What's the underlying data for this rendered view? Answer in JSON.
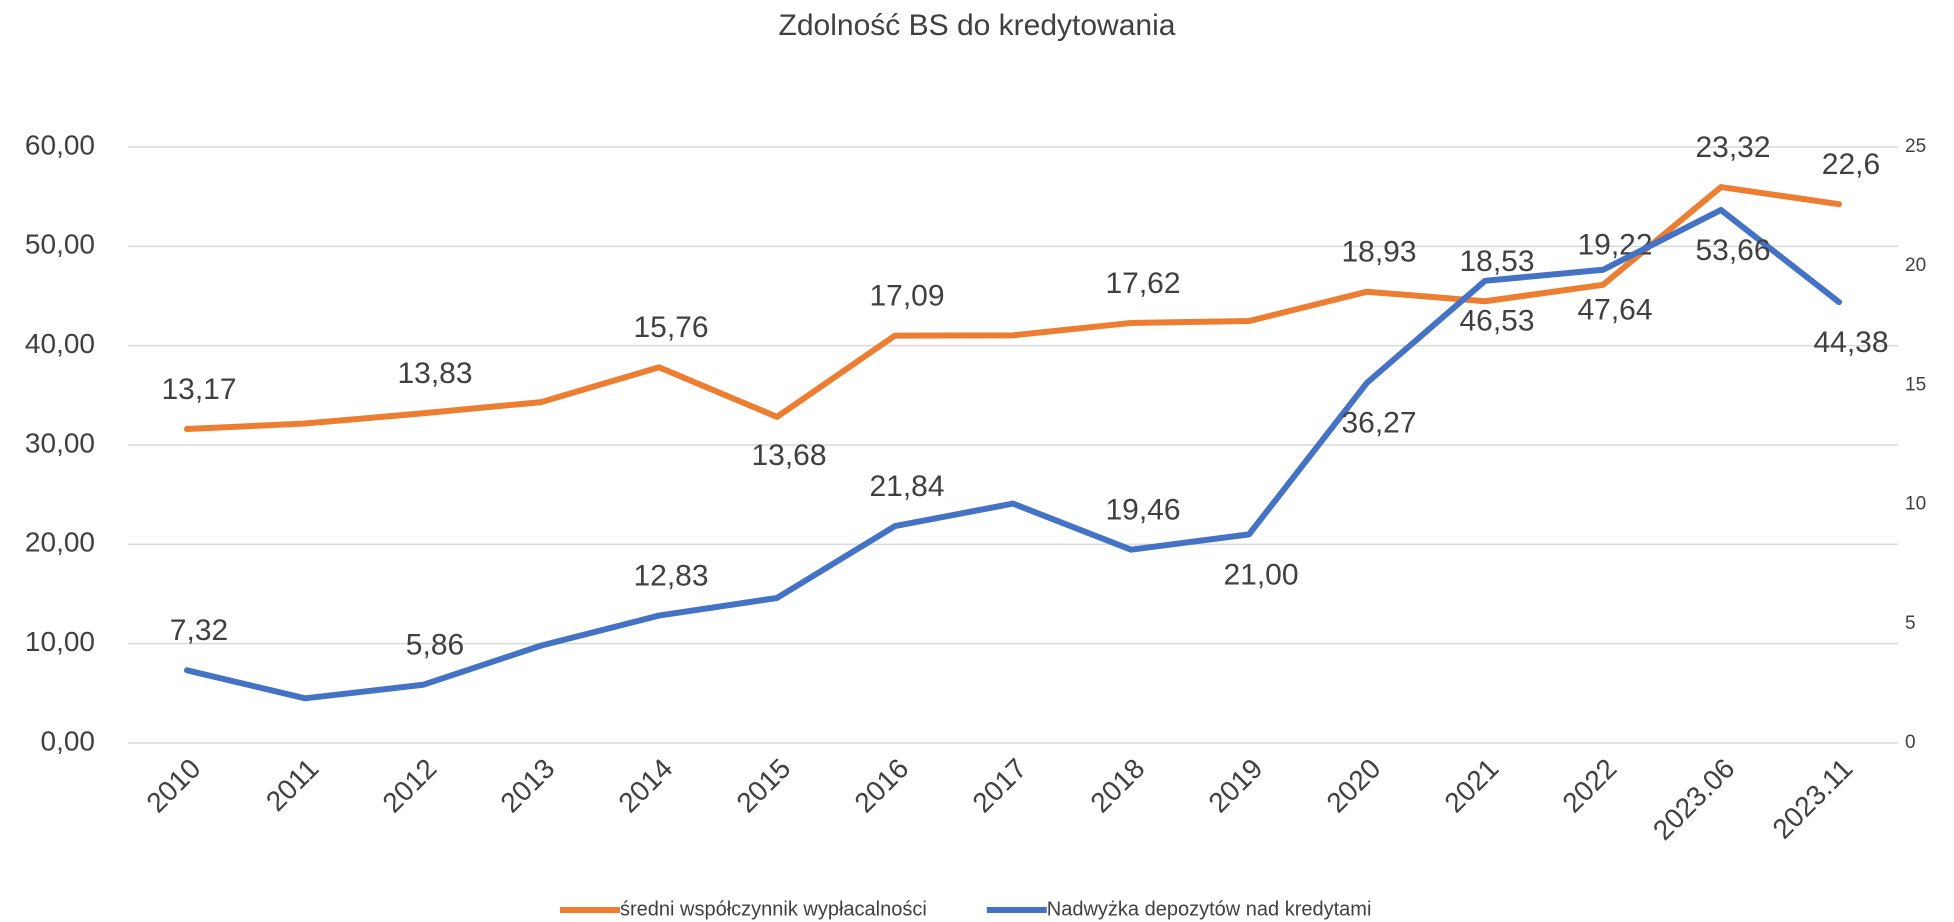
{
  "chart_data": {
    "type": "line",
    "title": "Zdolność BS do kredytowania",
    "categories": [
      "2010",
      "2011",
      "2012",
      "2013",
      "2014",
      "2015",
      "2016",
      "2017",
      "2018",
      "2019",
      "2020",
      "2021",
      "2022",
      "2023.06",
      "2023.11"
    ],
    "series": [
      {
        "name": "średni współczynnik wypłacalności",
        "color": "#ed7d31",
        "axis": "y2",
        "values": [
          13.17,
          13.4,
          13.83,
          14.3,
          15.76,
          13.68,
          17.09,
          17.1,
          17.62,
          17.7,
          18.93,
          18.53,
          19.22,
          23.32,
          22.6
        ],
        "value_labels": [
          "13,17",
          null,
          "13,83",
          null,
          "15,76",
          "13,68",
          "17,09",
          null,
          "17,62",
          null,
          "18,93",
          "18,53",
          "19,22",
          "23,32",
          "22,6"
        ]
      },
      {
        "name": "Nadwyżka depozytów nad kredytami",
        "color": "#4472c4",
        "values": [
          7.32,
          4.5,
          5.86,
          9.8,
          12.83,
          14.6,
          21.84,
          24.1,
          19.46,
          21.0,
          36.27,
          46.53,
          47.64,
          53.66,
          44.38
        ],
        "value_labels": [
          "7,32",
          null,
          "5,86",
          null,
          "12,83",
          null,
          "21,84",
          null,
          "19,46",
          "21,00",
          "36,27",
          "46,53",
          "47,64",
          "53,66",
          "44,38"
        ]
      }
    ],
    "ylim": [
      0,
      60
    ],
    "yticks": [
      {
        "value": 0,
        "label": "0,00"
      },
      {
        "value": 10,
        "label": "10,00"
      },
      {
        "value": 20,
        "label": "20,00"
      },
      {
        "value": 30,
        "label": "30,00"
      },
      {
        "value": 40,
        "label": "40,00"
      },
      {
        "value": 50,
        "label": "50,00"
      },
      {
        "value": 60,
        "label": "60,00"
      }
    ],
    "y2lim": [
      0,
      25
    ],
    "y2ticks": [
      0,
      5,
      10,
      15,
      20,
      25
    ],
    "grid": true,
    "legend": "bottom"
  }
}
